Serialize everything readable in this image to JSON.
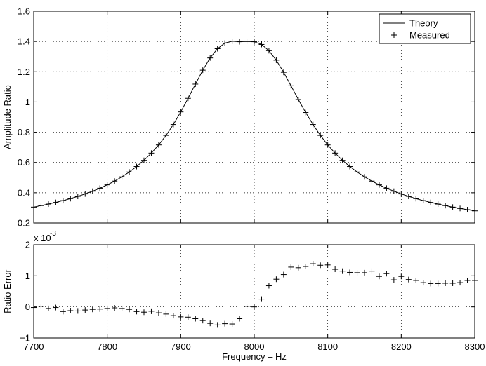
{
  "chart_data": [
    {
      "type": "line",
      "title": "",
      "xlabel": "",
      "ylabel": "Amplitude Ratio",
      "xlim": [
        7700,
        8300
      ],
      "ylim": [
        0.2,
        1.6
      ],
      "xticks": [
        7700,
        7800,
        7900,
        8000,
        8100,
        8200,
        8300
      ],
      "xtick_labels": [
        "",
        "",
        "",
        "",
        "",
        "",
        ""
      ],
      "yticks": [
        0.2,
        0.4,
        0.6,
        0.8,
        1.0,
        1.2,
        1.4,
        1.6
      ],
      "ytick_labels": [
        "0.2",
        "0.4",
        "0.6",
        "0.8",
        "1",
        "1.2",
        "1.4",
        "1.6"
      ],
      "grid": true,
      "legend_position": "top-right",
      "series": [
        {
          "name": "Theory",
          "style": "solid-line",
          "x": [
            7700,
            7710,
            7720,
            7730,
            7740,
            7750,
            7760,
            7770,
            7780,
            7790,
            7800,
            7810,
            7820,
            7830,
            7840,
            7850,
            7860,
            7870,
            7880,
            7890,
            7900,
            7910,
            7920,
            7930,
            7940,
            7950,
            7960,
            7970,
            7980,
            7990,
            8000,
            8010,
            8020,
            8030,
            8040,
            8050,
            8060,
            8070,
            8080,
            8090,
            8100,
            8110,
            8120,
            8130,
            8140,
            8150,
            8160,
            8170,
            8180,
            8190,
            8200,
            8210,
            8220,
            8230,
            8240,
            8250,
            8260,
            8270,
            8280,
            8290,
            8300
          ],
          "y": [
            0.305,
            0.315,
            0.325,
            0.336,
            0.348,
            0.361,
            0.376,
            0.392,
            0.41,
            0.43,
            0.452,
            0.477,
            0.505,
            0.537,
            0.573,
            0.614,
            0.662,
            0.716,
            0.779,
            0.851,
            0.934,
            1.024,
            1.118,
            1.21,
            1.291,
            1.352,
            1.389,
            1.401,
            1.398,
            1.4,
            1.398,
            1.38,
            1.339,
            1.276,
            1.196,
            1.107,
            1.016,
            0.93,
            0.851,
            0.779,
            0.716,
            0.662,
            0.614,
            0.573,
            0.537,
            0.505,
            0.477,
            0.452,
            0.43,
            0.41,
            0.392,
            0.376,
            0.361,
            0.348,
            0.336,
            0.325,
            0.315,
            0.305,
            0.296,
            0.288,
            0.28
          ]
        },
        {
          "name": "Measured",
          "style": "plus-markers",
          "x": [
            7700,
            7710,
            7720,
            7730,
            7740,
            7750,
            7760,
            7770,
            7780,
            7790,
            7800,
            7810,
            7820,
            7830,
            7840,
            7850,
            7860,
            7870,
            7880,
            7890,
            7900,
            7910,
            7920,
            7930,
            7940,
            7950,
            7960,
            7970,
            7980,
            7990,
            8000,
            8010,
            8020,
            8030,
            8040,
            8050,
            8060,
            8070,
            8080,
            8090,
            8100,
            8110,
            8120,
            8130,
            8140,
            8150,
            8160,
            8170,
            8180,
            8190,
            8200,
            8210,
            8220,
            8230,
            8240,
            8250,
            8260,
            8270,
            8280,
            8290,
            8300
          ],
          "y": [
            0.305,
            0.315,
            0.325,
            0.336,
            0.348,
            0.361,
            0.376,
            0.392,
            0.41,
            0.43,
            0.452,
            0.477,
            0.505,
            0.537,
            0.573,
            0.614,
            0.662,
            0.716,
            0.779,
            0.851,
            0.934,
            1.024,
            1.118,
            1.21,
            1.291,
            1.352,
            1.389,
            1.401,
            1.398,
            1.4,
            1.398,
            1.38,
            1.339,
            1.276,
            1.196,
            1.107,
            1.016,
            0.93,
            0.851,
            0.779,
            0.716,
            0.662,
            0.614,
            0.573,
            0.537,
            0.505,
            0.477,
            0.452,
            0.43,
            0.41,
            0.392,
            0.376,
            0.361,
            0.348,
            0.336,
            0.325,
            0.315,
            0.305,
            0.296,
            0.288,
            0.28
          ]
        }
      ]
    },
    {
      "type": "scatter",
      "title": "",
      "xlabel": "Frequency – Hz",
      "ylabel": "Ratio Error",
      "scale_note": "x 10",
      "scale_exponent": "-3",
      "xlim": [
        7700,
        8300
      ],
      "ylim": [
        -1,
        2
      ],
      "xticks": [
        7700,
        7800,
        7900,
        8000,
        8100,
        8200,
        8300
      ],
      "xtick_labels": [
        "7700",
        "7800",
        "7900",
        "8000",
        "8100",
        "8200",
        "8300"
      ],
      "yticks": [
        -1,
        0,
        1,
        2
      ],
      "ytick_labels": [
        "−1",
        "0",
        "1",
        "2"
      ],
      "grid": true,
      "series": [
        {
          "style": "plus-markers",
          "x": [
            7700,
            7710,
            7720,
            7730,
            7740,
            7750,
            7760,
            7770,
            7780,
            7790,
            7800,
            7810,
            7820,
            7830,
            7840,
            7850,
            7860,
            7870,
            7880,
            7890,
            7900,
            7910,
            7920,
            7930,
            7940,
            7950,
            7960,
            7970,
            7980,
            7990,
            8000,
            8010,
            8020,
            8030,
            8040,
            8050,
            8060,
            8070,
            8080,
            8090,
            8100,
            8110,
            8120,
            8130,
            8140,
            8150,
            8160,
            8170,
            8180,
            8190,
            8200,
            8210,
            8220,
            8230,
            8240,
            8250,
            8260,
            8270,
            8280,
            8290,
            8300
          ],
          "y": [
            -0.02,
            0.02,
            -0.05,
            -0.02,
            -0.15,
            -0.12,
            -0.13,
            -0.1,
            -0.08,
            -0.07,
            -0.05,
            -0.03,
            -0.05,
            -0.08,
            -0.15,
            -0.17,
            -0.14,
            -0.19,
            -0.23,
            -0.28,
            -0.32,
            -0.33,
            -0.38,
            -0.44,
            -0.53,
            -0.58,
            -0.54,
            -0.55,
            -0.38,
            0.02,
            0.0,
            0.25,
            0.68,
            0.89,
            1.04,
            1.28,
            1.26,
            1.3,
            1.39,
            1.34,
            1.35,
            1.21,
            1.15,
            1.11,
            1.1,
            1.1,
            1.15,
            0.98,
            1.07,
            0.87,
            0.98,
            0.88,
            0.85,
            0.78,
            0.75,
            0.75,
            0.76,
            0.76,
            0.78,
            0.85,
            0.85
          ]
        }
      ]
    }
  ]
}
